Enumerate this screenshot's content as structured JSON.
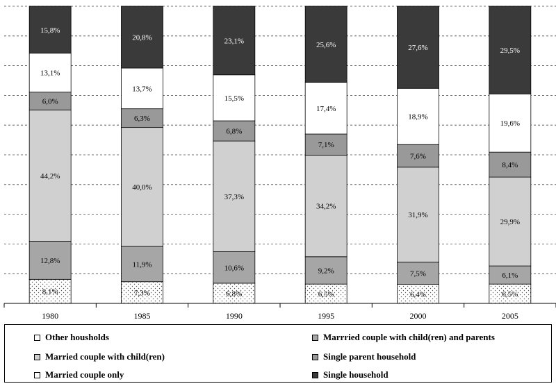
{
  "chart_data": {
    "type": "bar",
    "stacked": true,
    "percent_axis": true,
    "grid": true,
    "legend_position": "bottom",
    "categories": [
      "1980",
      "1985",
      "1990",
      "1995",
      "2000",
      "2005"
    ],
    "series": [
      {
        "name": "Other housholds",
        "color": "#ffffff",
        "pattern": "dots",
        "values": [
          8.1,
          7.3,
          6.8,
          6.5,
          6.4,
          6.5
        ],
        "labels": [
          "8,1%",
          "7,3%",
          "6,8%",
          "6,5%",
          "6,4%",
          "6,5%"
        ]
      },
      {
        "name": "Marrried couple with child(ren) and parents",
        "color": "#a6a6a6",
        "values": [
          12.8,
          11.9,
          10.6,
          9.2,
          7.5,
          6.1
        ],
        "labels": [
          "12,8%",
          "11,9%",
          "10,6%",
          "9,2%",
          "7,5%",
          "6,1%"
        ]
      },
      {
        "name": "Married couple with child(ren)",
        "color": "#d0d0d0",
        "values": [
          44.2,
          40.0,
          37.3,
          34.2,
          31.9,
          29.9
        ],
        "labels": [
          "44,2%",
          "40,0%",
          "37,3%",
          "34,2%",
          "31,9%",
          "29,9%"
        ]
      },
      {
        "name": "Single parent household",
        "color": "#999999",
        "values": [
          6.0,
          6.3,
          6.8,
          7.1,
          7.6,
          8.4
        ],
        "labels": [
          "6,0%",
          "6,3%",
          "6,8%",
          "7,1%",
          "7,6%",
          "8,4%"
        ]
      },
      {
        "name": "Married couple only",
        "color": "#ffffff",
        "values": [
          13.1,
          13.7,
          15.5,
          17.4,
          18.9,
          19.6
        ],
        "labels": [
          "13,1%",
          "13,7%",
          "15,5%",
          "17,4%",
          "18,9%",
          "19,6%"
        ]
      },
      {
        "name": "Single household",
        "color": "#3a3a3a",
        "values": [
          15.8,
          20.8,
          23.1,
          25.6,
          27.6,
          29.5
        ],
        "labels": [
          "15,8%",
          "20,8%",
          "23,1%",
          "25,6%",
          "27,6%",
          "29,5%"
        ]
      }
    ],
    "legend": [
      {
        "label": "Other housholds",
        "color": "#ffffff"
      },
      {
        "label": "Marrried couple with child(ren) and parents",
        "color": "#a6a6a6"
      },
      {
        "label": "Married couple with child(ren)",
        "color": "#d0d0d0"
      },
      {
        "label": "Single parent household",
        "color": "#999999"
      },
      {
        "label": "Married couple only",
        "color": "#ffffff"
      },
      {
        "label": "Single household",
        "color": "#3a3a3a"
      }
    ]
  }
}
